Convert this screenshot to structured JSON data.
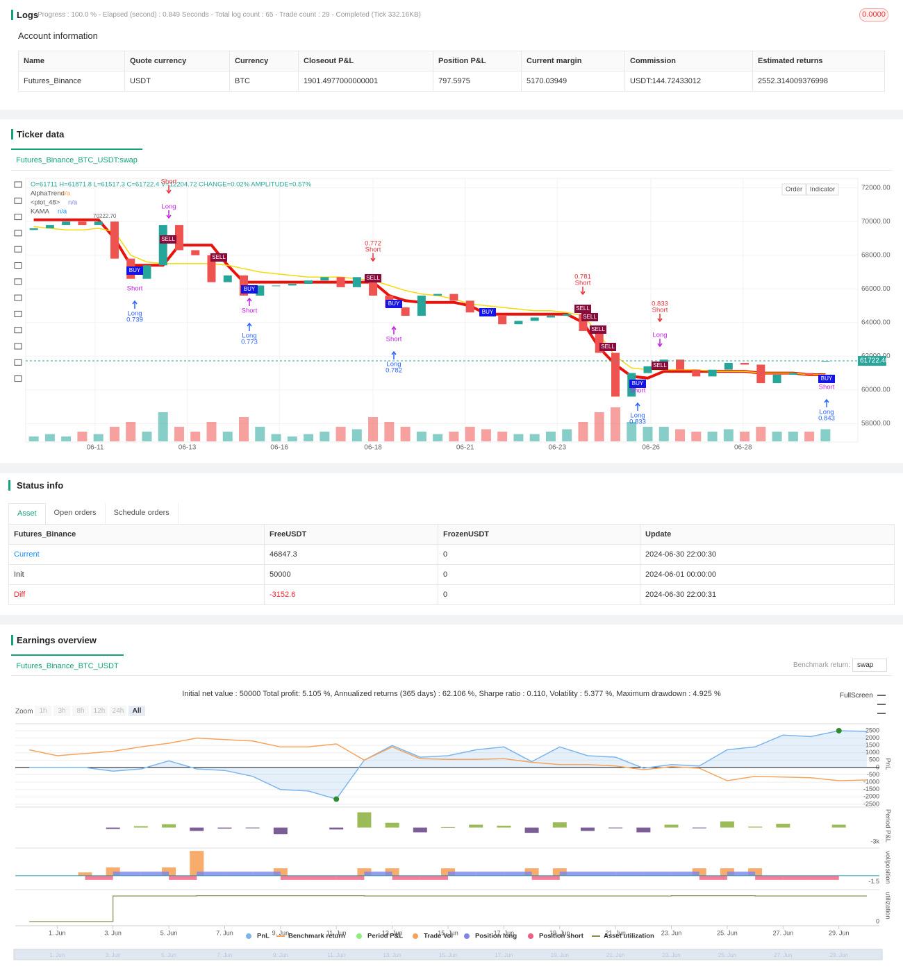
{
  "logs": {
    "title": "Logs",
    "status": "Progress : 100.0 % - Elapsed (second) : 0.849  Seconds - Total log count : 65 - Trade count : 29 - Completed (Tick 332.16KB)",
    "badge": "0.0000"
  },
  "account": {
    "title": "Account information",
    "columns": [
      "Name",
      "Quote currency",
      "Currency",
      "Closeout P&L",
      "Position P&L",
      "Current margin",
      "Commission",
      "Estimated returns"
    ],
    "rows": [
      [
        "Futures_Binance",
        "USDT",
        "BTC",
        "1901.4977000000001",
        "797.5975",
        "5170.03949",
        "USDT:144.72433012",
        "2552.314009376998"
      ]
    ]
  },
  "ticker": {
    "title": "Ticker data",
    "tab": "Futures_Binance_BTC_USDT:swap",
    "buttons": [
      "Order",
      "Indicator"
    ]
  },
  "status": {
    "title": "Status info",
    "tabs": [
      "Asset",
      "Open orders",
      "Schedule orders"
    ],
    "columns": [
      "Futures_Binance",
      "FreeUSDT",
      "FrozenUSDT",
      "Update"
    ],
    "rows": [
      [
        "Current",
        "46847.3",
        "0",
        "2024-06-30 22:00:30"
      ],
      [
        "Init",
        "50000",
        "0",
        "2024-06-01 00:00:00"
      ],
      [
        "Diff",
        "-3152.6",
        "0",
        "2024-06-30 22:00:31"
      ]
    ]
  },
  "earnings": {
    "title": "Earnings overview",
    "tab": "Futures_Binance_BTC_USDT",
    "benchmark_label": "Benchmark return:",
    "benchmark_value": "swap",
    "stats": "Initial net value : 50000 Total profit: 5.105 %, Annualized returns (365 days) : 62.106 %, Sharpe ratio : 0.110, Volatility : 5.377 %, Maximum drawdown : 4.925 %",
    "fullscreen": "FullScreen",
    "zoom_label": "Zoom",
    "zoom_options": [
      "1h",
      "3h",
      "8h",
      "12h",
      "24h",
      "All"
    ]
  },
  "chart_data": [
    {
      "type": "candlestick",
      "ohlc": "O=61711 H=61871.8 L=61517.3 C=61722.4 V=12204.72 CHANGE=0.02% AMPLITUDE=0.57%",
      "indicators": [
        {
          "name": "AlphaTrend",
          "value": "n/a"
        },
        {
          "name": "<plot_48>",
          "value": "n/a"
        },
        {
          "name": "KAMA",
          "value": "n/a"
        }
      ],
      "x": [
        0.5,
        1.5,
        2.5,
        3.5,
        4.5,
        5.5,
        6.5,
        7.5,
        8.5,
        9.5,
        10.5,
        11.5,
        12.5,
        13.5,
        14.5,
        15.5,
        16.5,
        17.5,
        18.5,
        19.5,
        20.5,
        21.5,
        22.5,
        23.5,
        24.5,
        25.5,
        26.5,
        27.5,
        28.5,
        29.5,
        30.5,
        31.5,
        32.5,
        33.5,
        34.5,
        35.5,
        36.5,
        37.5,
        38.5,
        39.5,
        40.5,
        41.5,
        42.5,
        43.5,
        44.5,
        45.5,
        46.5,
        47.5,
        48.5,
        49.5
      ],
      "open": [
        69500,
        69600,
        69800,
        70000,
        69800,
        70000,
        67800,
        66600,
        67400,
        69800,
        68300,
        68000,
        66400,
        66800,
        65600,
        66200,
        66200,
        66300,
        66500,
        66700,
        66100,
        66700,
        65600,
        64900,
        64400,
        65600,
        65700,
        65300,
        64600,
        64400,
        63900,
        64100,
        64300,
        64400,
        64500,
        63500,
        62200,
        59600,
        61000,
        61400,
        61800,
        61200,
        60800,
        61200,
        61600,
        61500,
        60400,
        60900,
        61000,
        61711
      ],
      "close": [
        69600,
        69800,
        70000,
        69800,
        70000,
        67800,
        66600,
        67400,
        69800,
        68300,
        68000,
        66400,
        66800,
        65600,
        66200,
        66200,
        66300,
        66500,
        66700,
        66100,
        66700,
        65600,
        64900,
        64400,
        65600,
        65700,
        65300,
        64600,
        64400,
        63900,
        64100,
        64300,
        64400,
        64500,
        63500,
        62200,
        59600,
        61000,
        61400,
        61800,
        61200,
        60800,
        61200,
        61600,
        61500,
        60400,
        60900,
        61000,
        60900,
        61722.4
      ],
      "volume": [
        1,
        1.5,
        1,
        2,
        1.5,
        3,
        4,
        2,
        6,
        3,
        2,
        4,
        2,
        5,
        3,
        1.5,
        1,
        1.5,
        2,
        3,
        2.5,
        5,
        4,
        3,
        2,
        1.5,
        2,
        3,
        2.5,
        2,
        1.5,
        1.5,
        2,
        2.5,
        4,
        6,
        7,
        4,
        3,
        3,
        2.5,
        2,
        2,
        2.5,
        2,
        3,
        2,
        2,
        2,
        2.5
      ],
      "up_color": "#26a69a",
      "down_color": "#ef5350",
      "series": [
        {
          "name": "AlphaTrend",
          "color": "#e8120c",
          "values": [
            70100,
            70100,
            70100,
            70100,
            70100,
            69000,
            67400,
            67400,
            67400,
            68600,
            68600,
            68600,
            67400,
            66400,
            66400,
            66400,
            66400,
            66400,
            66400,
            66400,
            66400,
            66400,
            65600,
            65300,
            65200,
            65200,
            65200,
            65000,
            64500,
            64500,
            64500,
            64500,
            64500,
            64500,
            64000,
            62500,
            61500,
            60800,
            60700,
            61100,
            61100,
            61100,
            61100,
            61100,
            61100,
            61000,
            61000,
            61000,
            60900,
            60900
          ]
        },
        {
          "name": "KAMA",
          "color": "#f5d90a",
          "values": [
            69700,
            69600,
            69500,
            69500,
            69600,
            69400,
            68000,
            67600,
            67500,
            67500,
            67500,
            67500,
            67400,
            67200,
            67000,
            66900,
            66800,
            66700,
            66700,
            66700,
            66600,
            66500,
            66200,
            65900,
            65700,
            65600,
            65400,
            65100,
            65000,
            64900,
            64800,
            64700,
            64700,
            64600,
            64400,
            63300,
            62000,
            61300,
            61200,
            61200,
            61200,
            61200,
            61100,
            61100,
            61100,
            61000,
            61000,
            61000,
            60900,
            60900
          ]
        }
      ],
      "xlim": [
        0,
        50
      ],
      "ylim": [
        56900,
        72650
      ],
      "yticks": [
        {
          "value": 72000,
          "label": "72000.00"
        },
        {
          "value": 70000,
          "label": "70000.00"
        },
        {
          "value": 68000,
          "label": "68000.00"
        },
        {
          "value": 66000,
          "label": "66000.00"
        },
        {
          "value": 64000,
          "label": "64000.00"
        },
        {
          "value": 62000,
          "label": "62000.00"
        },
        {
          "value": 60000,
          "label": "60000.00"
        },
        {
          "value": 58000,
          "label": "58000.00"
        }
      ],
      "xticks": [
        {
          "value": 4.3,
          "label": "06-11"
        },
        {
          "value": 10.0,
          "label": "06-13"
        },
        {
          "value": 15.7,
          "label": "06-16"
        },
        {
          "value": 21.5,
          "label": "06-18"
        },
        {
          "value": 27.2,
          "label": "06-21"
        },
        {
          "value": 32.9,
          "label": "06-23"
        },
        {
          "value": 38.7,
          "label": "06-26"
        },
        {
          "value": 44.4,
          "label": "06-28"
        }
      ],
      "last_price": {
        "value": 61722.4,
        "label": "61722.40"
      },
      "high_label": {
        "value": 70222.7,
        "label": "70222.70"
      },
      "signals": [
        "Short",
        "Long",
        "SELL",
        "SELL",
        "BUY",
        "Short",
        "Long",
        "0.739",
        "BUY",
        "Short",
        "Long",
        "0.773",
        "0.772",
        "Short",
        "SELL",
        "BUY",
        "Short",
        "Long",
        "0.782",
        "BUY",
        "0.781",
        "Short",
        "SELL",
        "SELL",
        "SELL",
        "SELL",
        "0.833",
        "Short",
        "Long",
        "SELL",
        "BUY",
        "Short",
        "Long",
        "0.833",
        "BUY",
        "Short",
        "Long",
        "0.843"
      ]
    },
    {
      "type": "line",
      "y_label": "PnL",
      "x": [
        0,
        1,
        2,
        3,
        4,
        5,
        6,
        7,
        8,
        9,
        10,
        11,
        12,
        13,
        14,
        15,
        16,
        17,
        18,
        19,
        20,
        21,
        22,
        23,
        24,
        25,
        26,
        27,
        28,
        29,
        30
      ],
      "series": [
        {
          "name": "PnL",
          "color": "#7cb5ec",
          "values": [
            0,
            0,
            0,
            -250,
            -100,
            450,
            -100,
            -200,
            -600,
            -1500,
            -1600,
            -2150,
            500,
            1500,
            700,
            800,
            1200,
            1400,
            400,
            1400,
            800,
            700,
            -50,
            200,
            100,
            1200,
            1400,
            2200,
            2100,
            2500,
            2450
          ]
        },
        {
          "name": "Benchmark return",
          "color": "#f7a35c",
          "values": [
            1200,
            800,
            950,
            1100,
            1400,
            1650,
            2000,
            1900,
            1800,
            1400,
            1400,
            1600,
            500,
            1400,
            600,
            550,
            550,
            600,
            350,
            200,
            200,
            100,
            -150,
            50,
            -50,
            -900,
            -600,
            -650,
            -700,
            -900,
            -850
          ]
        }
      ],
      "xlim": [
        -0.5,
        30.45
      ],
      "ylim": [
        -2550,
        2970
      ],
      "yticks": [
        2500,
        2000,
        1500,
        1000,
        500,
        0,
        -500,
        -1000,
        -1500,
        -2000,
        -2500
      ],
      "xticks": [
        {
          "value": 1,
          "label": "1. Jun"
        },
        {
          "value": 3,
          "label": "3. Jun"
        },
        {
          "value": 5,
          "label": "5. Jun"
        },
        {
          "value": 7,
          "label": "7. Jun"
        },
        {
          "value": 9,
          "label": "9. Jun"
        },
        {
          "value": 11,
          "label": "11. Jun"
        },
        {
          "value": 13,
          "label": "13. Jun"
        },
        {
          "value": 15,
          "label": "15. Jun"
        },
        {
          "value": 17,
          "label": "17. Jun"
        },
        {
          "value": 19,
          "label": "19. Jun"
        },
        {
          "value": 21,
          "label": "21. Jun"
        },
        {
          "value": 23,
          "label": "23. Jun"
        },
        {
          "value": 25,
          "label": "25. Jun"
        },
        {
          "value": 27,
          "label": "27. Jun"
        },
        {
          "value": 29,
          "label": "29. Jun"
        }
      ]
    },
    {
      "type": "bar",
      "y_label": "Period P&L",
      "series": [
        {
          "name": "Period P&L",
          "color": "#9bbb59",
          "negative_color": "#7b5e96",
          "values": [
            null,
            null,
            null,
            -300,
            300,
            700,
            -700,
            -200,
            -100,
            -1400,
            null,
            -400,
            3200,
            1000,
            -1000,
            100,
            600,
            400,
            -1100,
            1100,
            -700,
            -100,
            -1000,
            600,
            -100,
            1300,
            200,
            800,
            null,
            600,
            null
          ]
        }
      ],
      "ylim": [
        -3700,
        4300
      ],
      "yticks": [
        {
          "value": -3000,
          "label": "-3k"
        }
      ]
    },
    {
      "type": "bar",
      "y_label": "vol/position",
      "series": [
        {
          "name": "Trade Vol",
          "color": "#f7a35c",
          "values": [
            null,
            null,
            0.8,
            2,
            null,
            2,
            6,
            null,
            null,
            1.8,
            null,
            null,
            1.8,
            1.8,
            null,
            1.8,
            null,
            null,
            1.8,
            1.8,
            null,
            null,
            null,
            null,
            1.8,
            1.8,
            1.8,
            null,
            null,
            null,
            null
          ]
        },
        {
          "name": "Position long",
          "color": "#8085e9",
          "values": [
            null,
            null,
            null,
            null,
            1,
            1,
            null,
            1,
            1,
            1,
            null,
            null,
            null,
            1,
            null,
            null,
            1,
            1,
            1,
            null,
            1,
            1,
            1,
            1,
            1,
            null,
            1,
            null,
            null,
            null,
            null
          ]
        },
        {
          "name": "Position short",
          "color": "#f15c80",
          "values": [
            null,
            null,
            null,
            -1,
            null,
            null,
            -1,
            null,
            null,
            null,
            -1,
            -1,
            -1,
            null,
            -1,
            -1,
            null,
            null,
            null,
            -1,
            null,
            null,
            null,
            null,
            null,
            -1,
            null,
            -1,
            -1,
            -1,
            null
          ]
        }
      ],
      "ylim": [
        -2.7,
        6.7
      ],
      "yticks": [
        -1.5
      ]
    },
    {
      "type": "line",
      "y_label": "utilization",
      "series": [
        {
          "name": "Asset utilization",
          "color": "#8d8a4f",
          "values": [
            0,
            0,
            0,
            0.97,
            0.97,
            0.97,
            0.98,
            0.98,
            0.98,
            0.98,
            0.98,
            0.98,
            0.97,
            0.97,
            0.97,
            0.97,
            0.97,
            0.97,
            0.97,
            0.97,
            0.97,
            0.97,
            0.97,
            0.98,
            0.98,
            0.98,
            0.97,
            0.97,
            0.97,
            0.97,
            0.97
          ]
        }
      ],
      "ylim": [
        0,
        1.21
      ],
      "yticks": [
        0
      ]
    }
  ]
}
